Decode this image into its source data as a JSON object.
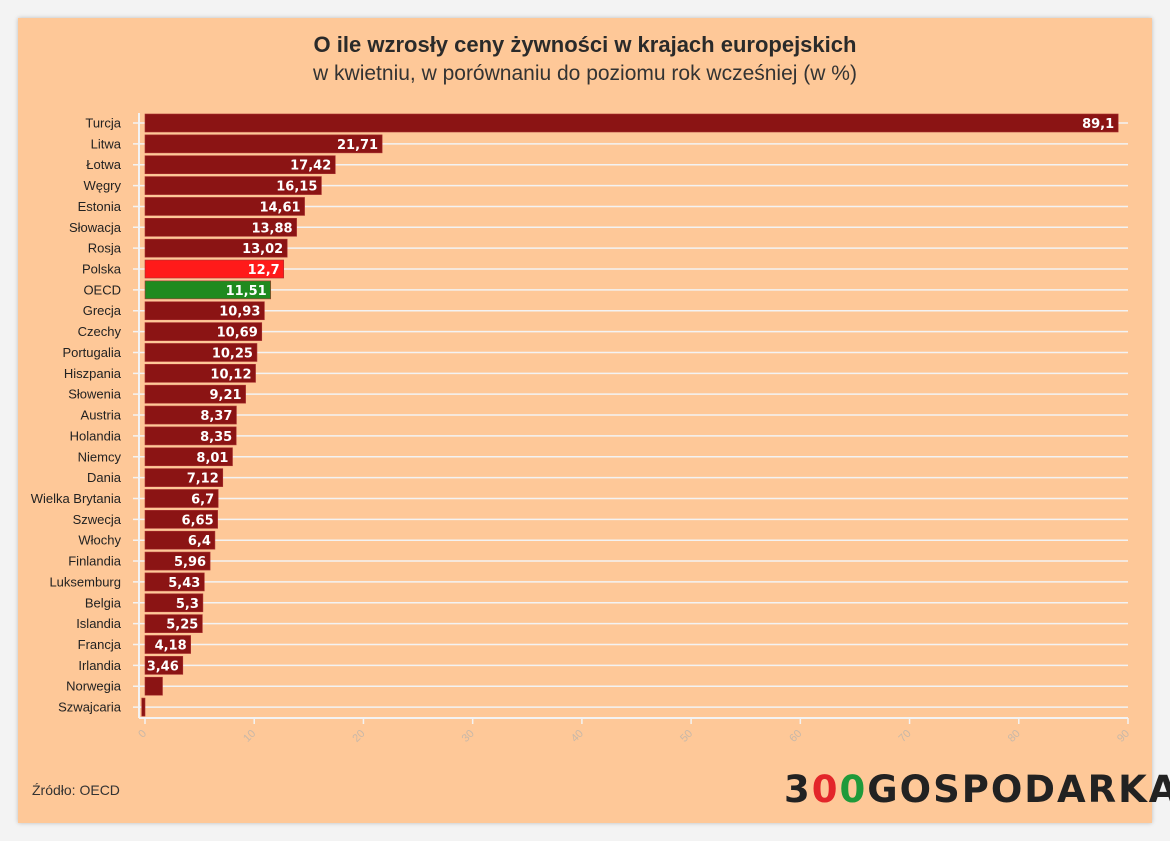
{
  "chart_data": {
    "type": "bar",
    "orientation": "horizontal",
    "title": "O ile wzrosły ceny żywności w krajach europejskich",
    "subtitle": "w kwietniu, w porównaniu do poziomu rok wcześniej (w %)",
    "categories": [
      "Turcja",
      "Litwa",
      "Łotwa",
      "Węgry",
      "Estonia",
      "Słowacja",
      "Rosja",
      "Polska",
      "OECD",
      "Grecja",
      "Czechy",
      "Portugalia",
      "Hiszpania",
      "Słowenia",
      "Austria",
      "Holandia",
      "Niemcy",
      "Dania",
      "Wielka Brytania",
      "Szwecja",
      "Włochy",
      "Finlandia",
      "Luksemburg",
      "Belgia",
      "Islandia",
      "Francja",
      "Irlandia",
      "Norwegia",
      "Szwajcaria"
    ],
    "values": [
      89.1,
      21.71,
      17.42,
      16.15,
      14.61,
      13.88,
      13.02,
      12.7,
      11.51,
      10.93,
      10.69,
      10.25,
      10.12,
      9.21,
      8.37,
      8.35,
      8.01,
      7.12,
      6.7,
      6.65,
      6.4,
      5.96,
      5.43,
      5.3,
      5.25,
      4.18,
      3.46,
      1.6,
      -0.3
    ],
    "data_labels": [
      "89,1",
      "21,71",
      "17,42",
      "16,15",
      "14,61",
      "13,88",
      "13,02",
      "12,7",
      "11,51",
      "10,93",
      "10,69",
      "10,25",
      "10,12",
      "9,21",
      "8,37",
      "8,35",
      "8,01",
      "7,12",
      "6,7",
      "6,65",
      "6,4",
      "5,96",
      "5,43",
      "5,3",
      "5,25",
      "4,18",
      "3,46",
      "",
      ""
    ],
    "highlight": {
      "Polska": "#ff1a1a",
      "OECD": "#1f8a1f"
    },
    "default_color": "#8b1414",
    "xlim": [
      0,
      90
    ],
    "xticks": [
      "0",
      "10",
      "20",
      "30",
      "40",
      "50",
      "60",
      "70",
      "80",
      "90"
    ],
    "grid": true
  },
  "source": "Źródło: OECD",
  "logo": {
    "a": "3",
    "b": "0",
    "c": "0",
    "d": "GOSPODARKA"
  }
}
